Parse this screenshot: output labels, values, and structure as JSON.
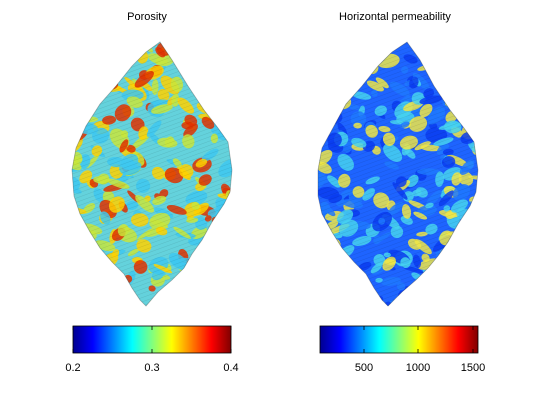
{
  "figure": {
    "background": "#ffffff"
  },
  "chart_data": [
    {
      "type": "surface",
      "title": "Porosity",
      "colormap": "jet",
      "surface_style": "faceted mesh, tilted 3D view",
      "dominant_colors": [
        "#3ec8f0",
        "#c8e63c",
        "#ffd200",
        "#e03200"
      ],
      "colorbar": {
        "orientation": "horizontal",
        "range": [
          0.2,
          0.4
        ],
        "ticks": [
          0.2,
          0.3,
          0.4
        ],
        "tick_labels": [
          "0.2",
          "0.3",
          "0.4"
        ]
      }
    },
    {
      "type": "surface",
      "title": "Horizontal permeability",
      "colormap": "jet",
      "surface_style": "faceted mesh, tilted 3D view",
      "dominant_colors": [
        "#0a3cf0",
        "#1e78ff",
        "#46d2f0",
        "#f0e646"
      ],
      "colorbar": {
        "orientation": "horizontal",
        "range": [
          100,
          1550
        ],
        "ticks": [
          500,
          1000,
          1500
        ],
        "tick_labels": [
          "500",
          "1000",
          "1500"
        ]
      }
    }
  ]
}
